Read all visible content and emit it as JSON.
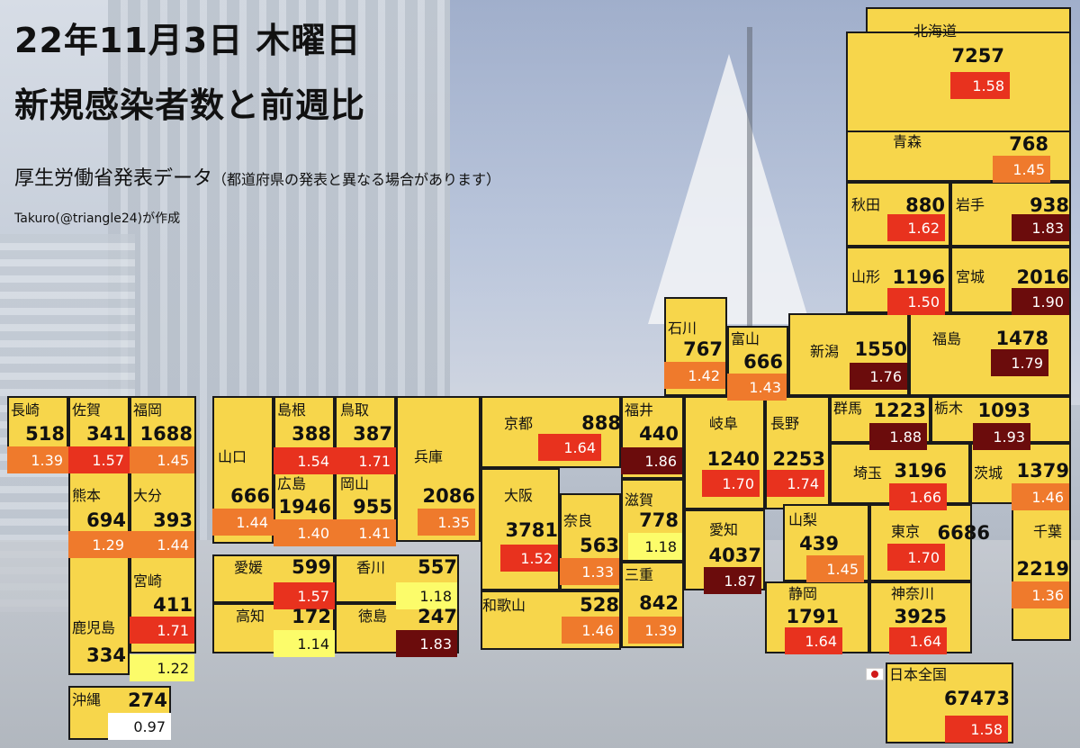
{
  "header": {
    "title_line1": "22年11月3日 木曜日",
    "title_line2": "新規感染者数と前週比",
    "subtitle_main": "厚生労働省発表データ",
    "subtitle_note": "（都道府県の発表と異なる場合があります）",
    "credit": "Takuro(@triangle24)が作成"
  },
  "colors": {
    "cell_fill": "#f7d64b",
    "ratio_white": "#ffffff",
    "ratio_light_yellow": "#fcfc6a",
    "ratio_orange": "#ef7a2c",
    "ratio_red": "#e8321e",
    "ratio_dark_red": "#6b0c0c"
  },
  "national": {
    "name": "日本全国",
    "cases": "67473",
    "ratio": "1.58",
    "flag_icon": "japan-flag-icon"
  },
  "prefectures": [
    {
      "name": "北海道",
      "cases": "7257",
      "ratio": "1.58"
    },
    {
      "name": "青森",
      "cases": "768",
      "ratio": "1.45"
    },
    {
      "name": "秋田",
      "cases": "880",
      "ratio": "1.62"
    },
    {
      "name": "岩手",
      "cases": "938",
      "ratio": "1.83"
    },
    {
      "name": "山形",
      "cases": "1196",
      "ratio": "1.50"
    },
    {
      "name": "宮城",
      "cases": "2016",
      "ratio": "1.90"
    },
    {
      "name": "新潟",
      "cases": "1550",
      "ratio": "1.76"
    },
    {
      "name": "福島",
      "cases": "1478",
      "ratio": "1.79"
    },
    {
      "name": "石川",
      "cases": "767",
      "ratio": "1.42"
    },
    {
      "name": "富山",
      "cases": "666",
      "ratio": "1.43"
    },
    {
      "name": "福井",
      "cases": "440",
      "ratio": "1.86"
    },
    {
      "name": "岐阜",
      "cases": "1240",
      "ratio": "1.70"
    },
    {
      "name": "長野",
      "cases": "2253",
      "ratio": "1.74"
    },
    {
      "name": "群馬",
      "cases": "1223",
      "ratio": "1.88"
    },
    {
      "name": "栃木",
      "cases": "1093",
      "ratio": "1.93"
    },
    {
      "name": "埼玉",
      "cases": "3196",
      "ratio": "1.66"
    },
    {
      "name": "茨城",
      "cases": "1379",
      "ratio": "1.46"
    },
    {
      "name": "山梨",
      "cases": "439",
      "ratio": "1.45"
    },
    {
      "name": "東京",
      "cases": "6686",
      "ratio": "1.70"
    },
    {
      "name": "千葉",
      "cases": "2219",
      "ratio": "1.36"
    },
    {
      "name": "静岡",
      "cases": "1791",
      "ratio": "1.64"
    },
    {
      "name": "神奈川",
      "cases": "3925",
      "ratio": "1.64"
    },
    {
      "name": "愛知",
      "cases": "4037",
      "ratio": "1.87"
    },
    {
      "name": "滋賀",
      "cases": "778",
      "ratio": "1.18"
    },
    {
      "name": "三重",
      "cases": "842",
      "ratio": "1.39"
    },
    {
      "name": "京都",
      "cases": "888",
      "ratio": "1.64"
    },
    {
      "name": "大阪",
      "cases": "3781",
      "ratio": "1.52"
    },
    {
      "name": "奈良",
      "cases": "563",
      "ratio": "1.33"
    },
    {
      "name": "和歌山",
      "cases": "528",
      "ratio": "1.46"
    },
    {
      "name": "兵庫",
      "cases": "2086",
      "ratio": "1.35"
    },
    {
      "name": "鳥取",
      "cases": "387",
      "ratio": "1.71"
    },
    {
      "name": "島根",
      "cases": "388",
      "ratio": "1.54"
    },
    {
      "name": "岡山",
      "cases": "955",
      "ratio": "1.41"
    },
    {
      "name": "広島",
      "cases": "1946",
      "ratio": "1.40"
    },
    {
      "name": "山口",
      "cases": "666",
      "ratio": "1.44"
    },
    {
      "name": "香川",
      "cases": "557",
      "ratio": "1.18"
    },
    {
      "name": "愛媛",
      "cases": "599",
      "ratio": "1.57"
    },
    {
      "name": "徳島",
      "cases": "247",
      "ratio": "1.83"
    },
    {
      "name": "高知",
      "cases": "172",
      "ratio": "1.14"
    },
    {
      "name": "福岡",
      "cases": "1688",
      "ratio": "1.45"
    },
    {
      "name": "佐賀",
      "cases": "341",
      "ratio": "1.57"
    },
    {
      "name": "長崎",
      "cases": "518",
      "ratio": "1.39"
    },
    {
      "name": "大分",
      "cases": "393",
      "ratio": "1.44"
    },
    {
      "name": "熊本",
      "cases": "694",
      "ratio": "1.29"
    },
    {
      "name": "宮崎",
      "cases": "411",
      "ratio": "1.71"
    },
    {
      "name": "鹿児島",
      "cases": "334",
      "ratio": "1.22"
    },
    {
      "name": "沖縄",
      "cases": "274",
      "ratio": "0.97"
    }
  ]
}
